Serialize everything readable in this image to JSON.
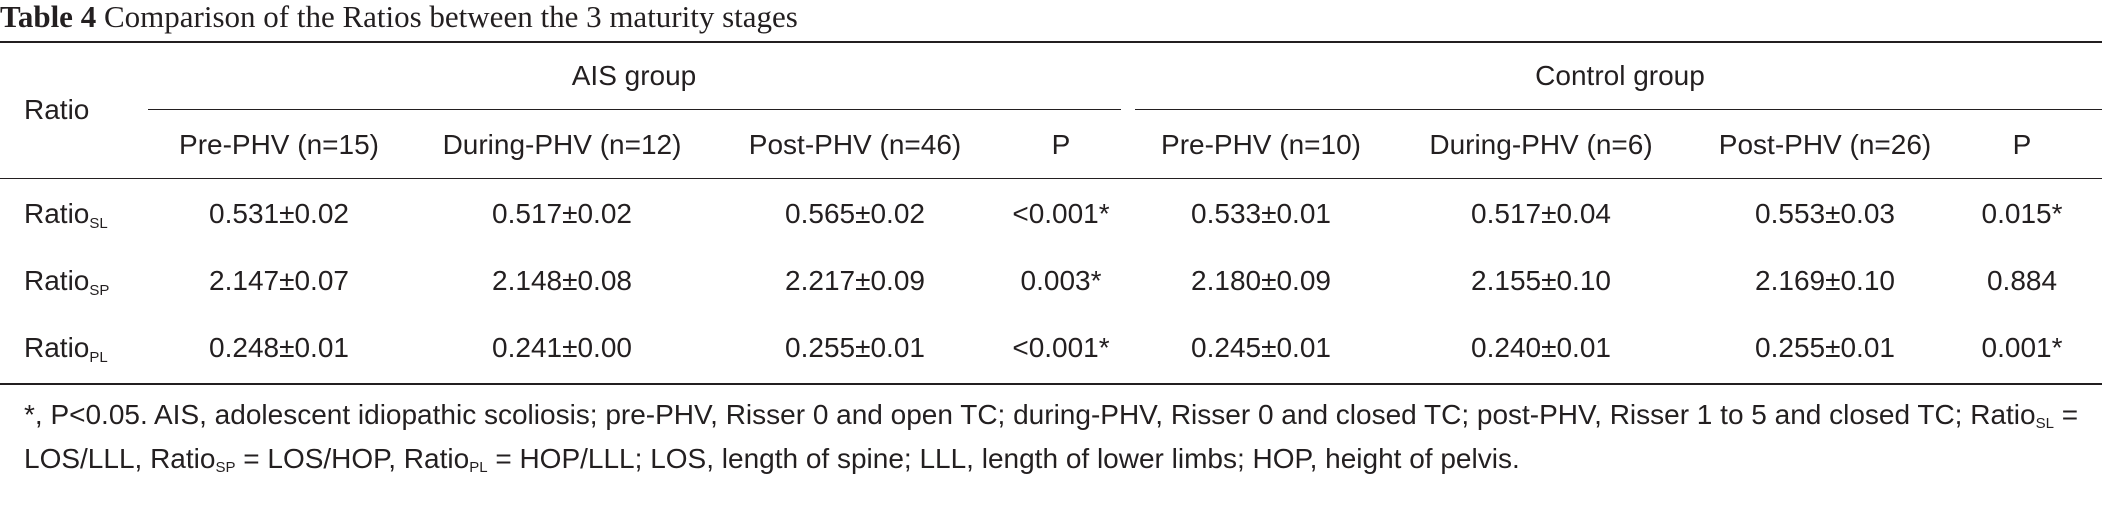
{
  "caption": {
    "label": "Table 4",
    "title": "Comparison of the Ratios between the 3 maturity stages"
  },
  "header": {
    "row_label": "Ratio",
    "groups": [
      "AIS group",
      "Control group"
    ],
    "columns": [
      "Pre-PHV (n=15)",
      "During-PHV (n=12)",
      "Post-PHV (n=46)",
      "P",
      "Pre-PHV (n=10)",
      "During-PHV (n=6)",
      "Post-PHV (n=26)",
      "P"
    ]
  },
  "rows": [
    {
      "name": "Ratio",
      "sub": "SL",
      "values": [
        "0.531±0.02",
        "0.517±0.02",
        "0.565±0.02",
        "<0.001*",
        "0.533±0.01",
        "0.517±0.04",
        "0.553±0.03",
        "0.015*"
      ]
    },
    {
      "name": "Ratio",
      "sub": "SP",
      "values": [
        "2.147±0.07",
        "2.148±0.08",
        "2.217±0.09",
        "0.003*",
        "2.180±0.09",
        "2.155±0.10",
        "2.169±0.10",
        "0.884"
      ]
    },
    {
      "name": "Ratio",
      "sub": "PL",
      "values": [
        "0.248±0.01",
        "0.241±0.00",
        "0.255±0.01",
        "<0.001*",
        "0.245±0.01",
        "0.240±0.01",
        "0.255±0.01",
        "0.001*"
      ]
    }
  ],
  "footnote": {
    "part1": "*, P<0.05. AIS, adolescent idiopathic scoliosis; pre-PHV, Risser 0 and open TC; during-PHV, Risser 0 and closed TC; post-PHV, Risser 1 to 5 and closed TC; Ratio",
    "sub1": "SL",
    "part2": " = LOS/LLL, Ratio",
    "sub2": "SP",
    "part3": " = LOS/HOP, Ratio",
    "sub3": "PL",
    "part4": " = HOP/LLL; LOS, length of spine; LLL, length of lower limbs; HOP, height of pelvis."
  }
}
